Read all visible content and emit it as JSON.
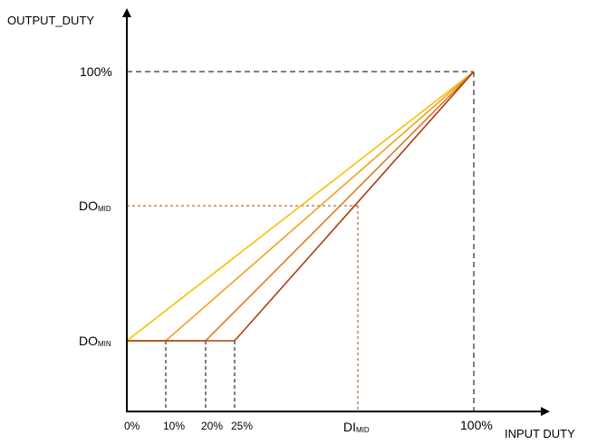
{
  "labels": {
    "y_axis": "OUTPUT_DUTY",
    "x_axis": "INPUT  DUTY",
    "y_100": "100%",
    "do_mid_main": "DO",
    "do_mid_sub": "MID",
    "do_min_main": "DO",
    "do_min_sub": "MIN",
    "x_0": "0%",
    "x_10": "10%",
    "x_20": "20%",
    "x_25": "25%",
    "di_mid_main": "DI",
    "di_mid_sub": "MID",
    "x_100": "100%"
  },
  "colors": {
    "line_0": "#f2c200",
    "line_10": "#f0a020",
    "line_20": "#e07820",
    "line_25": "#a84010",
    "mid_guide": "#a84010",
    "guide": "#000000",
    "axis": "#000000"
  },
  "curves": [
    {
      "knee_input": 0
    },
    {
      "knee_input": 10
    },
    {
      "knee_input": 20
    },
    {
      "knee_input": 25
    }
  ],
  "levels": {
    "do_min_fraction": 0.25,
    "di_mid_fraction": 0.66,
    "do_mid_fraction": 0.6
  }
}
